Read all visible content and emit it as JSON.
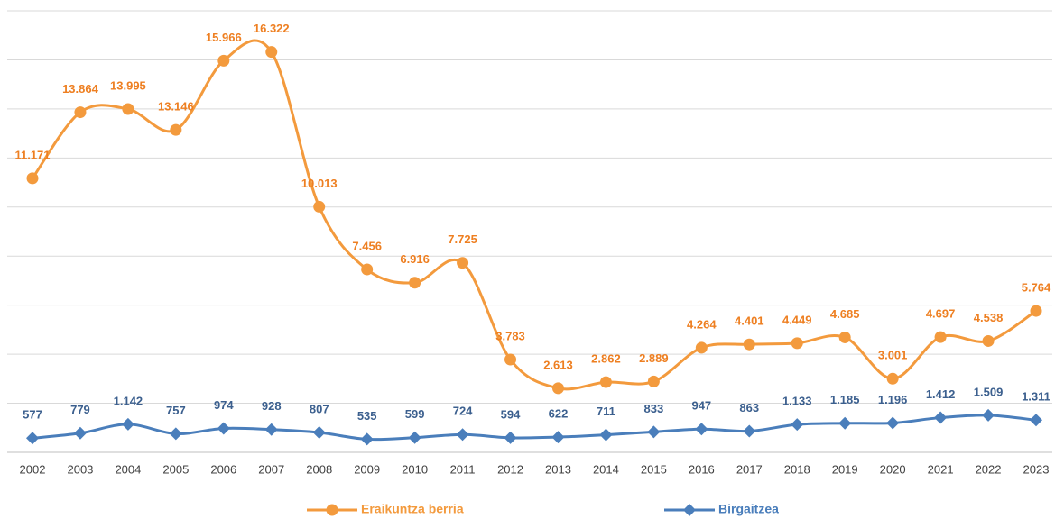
{
  "chart_data": {
    "type": "line",
    "categories": [
      "2002",
      "2003",
      "2004",
      "2005",
      "2006",
      "2007",
      "2008",
      "2009",
      "2010",
      "2011",
      "2012",
      "2013",
      "2014",
      "2015",
      "2016",
      "2017",
      "2018",
      "2019",
      "2020",
      "2021",
      "2022",
      "2023"
    ],
    "series": [
      {
        "name": "Eraikuntza berria",
        "color": "#f39a3d",
        "marker": "circle",
        "values": [
          11171,
          13864,
          13995,
          13146,
          15966,
          16322,
          10013,
          7456,
          6916,
          7725,
          3783,
          2613,
          2862,
          2889,
          4264,
          4401,
          4449,
          4685,
          3001,
          4697,
          4538,
          5764
        ],
        "value_labels": [
          "11.171",
          "13.864",
          "13.995",
          "13.146",
          "15.966",
          "16.322",
          "10.013",
          "7.456",
          "6.916",
          "7.725",
          "3.783",
          "2.613",
          "2.862",
          "2.889",
          "4.264",
          "4.401",
          "4.449",
          "4.685",
          "3.001",
          "4.697",
          "4.538",
          "5.764"
        ]
      },
      {
        "name": "Birgaitzea",
        "color": "#4a7ebb",
        "marker": "diamond",
        "values": [
          577,
          779,
          1142,
          757,
          974,
          928,
          807,
          535,
          599,
          724,
          594,
          622,
          711,
          833,
          947,
          863,
          1133,
          1185,
          1196,
          1412,
          1509,
          1311
        ],
        "value_labels": [
          "577",
          "779",
          "1.142",
          "757",
          "974",
          "928",
          "807",
          "535",
          "599",
          "724",
          "594",
          "622",
          "711",
          "833",
          "947",
          "863",
          "1.133",
          "1.185",
          "1.196",
          "1.412",
          "1.509",
          "1.311"
        ]
      }
    ],
    "ylim": [
      0,
      18000
    ],
    "yticks": [
      0,
      2000,
      4000,
      6000,
      8000,
      10000,
      12000,
      14000,
      16000,
      18000
    ],
    "grid": true,
    "legend": "bottom"
  }
}
